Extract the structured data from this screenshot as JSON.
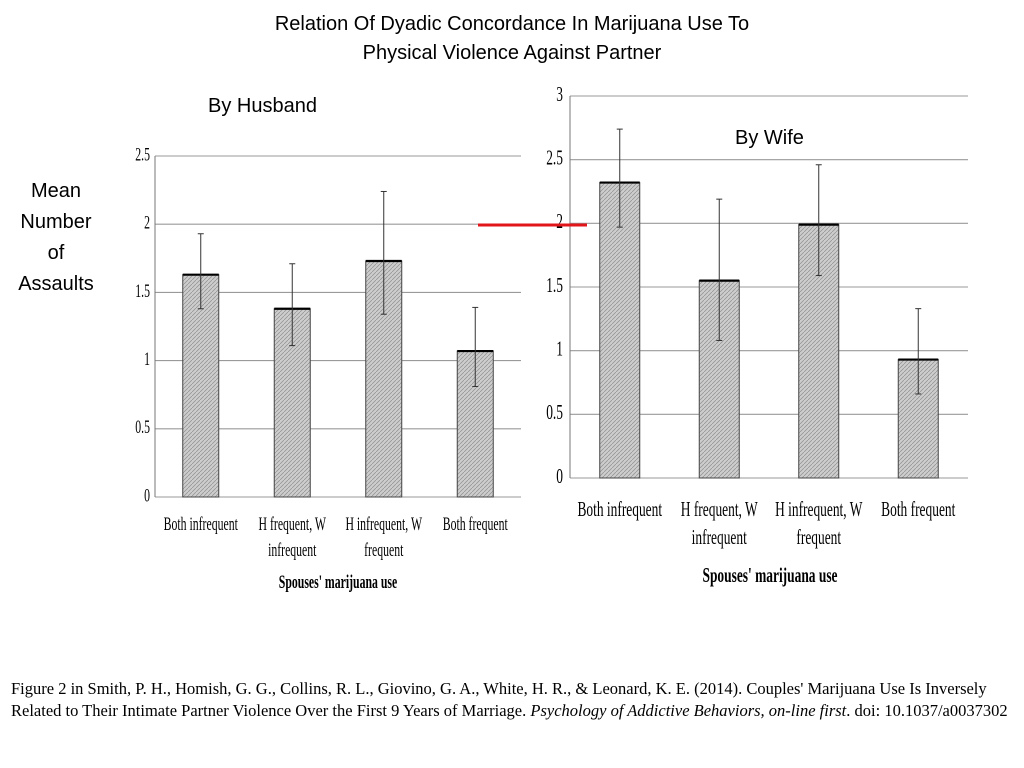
{
  "slide": {
    "title_line1": "Relation Of Dyadic Concordance In Marijuana Use To",
    "title_line2": "Physical Violence Against Partner",
    "husband_label": "By Husband",
    "wife_label": "By Wife",
    "y_label_lines": [
      "Mean",
      "Number",
      "of",
      "Assaults"
    ],
    "reference_line_color": "#e0161b"
  },
  "caption": {
    "prefix": "Figure 2  in Smith, P. H., Homish, G. G., Collins, R. L., Giovino, G. A., White, H. R., & Leonard, K. E. (2014). Couples' Marijuana Use Is Inversely Related to Their Intimate Partner Violence Over the First 9 Years of Marriage. ",
    "journal": "Psychology of Addictive Behaviors, on-line first",
    "doi": ". doi: 10.1037/a0037302"
  },
  "chart_data": [
    {
      "type": "bar",
      "title": "By Husband",
      "xlabel": "Spouses' marijuana use",
      "ylabel": "Mean Number of Assaults",
      "categories": [
        "Both infrequent",
        "H frequent, W infrequent",
        "H infrequent, W frequent",
        "Both frequent"
      ],
      "category_lines": [
        [
          "Both infrequent"
        ],
        [
          "H frequent, W",
          "infrequent"
        ],
        [
          "H infrequent, W",
          "frequent"
        ],
        [
          "Both frequent"
        ]
      ],
      "values": [
        1.63,
        1.38,
        1.73,
        1.07
      ],
      "error_high": [
        1.93,
        1.71,
        2.24,
        1.39
      ],
      "error_low": [
        1.38,
        1.11,
        1.34,
        0.81
      ],
      "ylim": [
        0,
        2.5
      ],
      "yticks": [
        "0",
        "0.5",
        "1",
        "1.5",
        "2",
        "2.5"
      ],
      "grid": true,
      "bar_fill": "#c4c4c4",
      "grid_color": "#9a9a9a"
    },
    {
      "type": "bar",
      "title": "By Wife",
      "xlabel": "Spouses' marijuana use",
      "ylabel": "Mean Number of Assaults",
      "categories": [
        "Both infrequent",
        "H frequent, W infrequent",
        "H infrequent, W frequent",
        "Both frequent"
      ],
      "category_lines": [
        [
          "Both infrequent"
        ],
        [
          "H frequent, W",
          "infrequent"
        ],
        [
          "H infrequent, W",
          "frequent"
        ],
        [
          "Both frequent"
        ]
      ],
      "values": [
        2.32,
        1.55,
        1.99,
        0.93
      ],
      "error_high": [
        2.74,
        2.19,
        2.46,
        1.33
      ],
      "error_low": [
        1.97,
        1.08,
        1.59,
        0.66
      ],
      "ylim": [
        0,
        3
      ],
      "yticks": [
        "0",
        "0.5",
        "1",
        "1.5",
        "2",
        "2.5",
        "3"
      ],
      "grid": true,
      "bar_fill": "#c4c4c4",
      "grid_color": "#9a9a9a"
    }
  ]
}
